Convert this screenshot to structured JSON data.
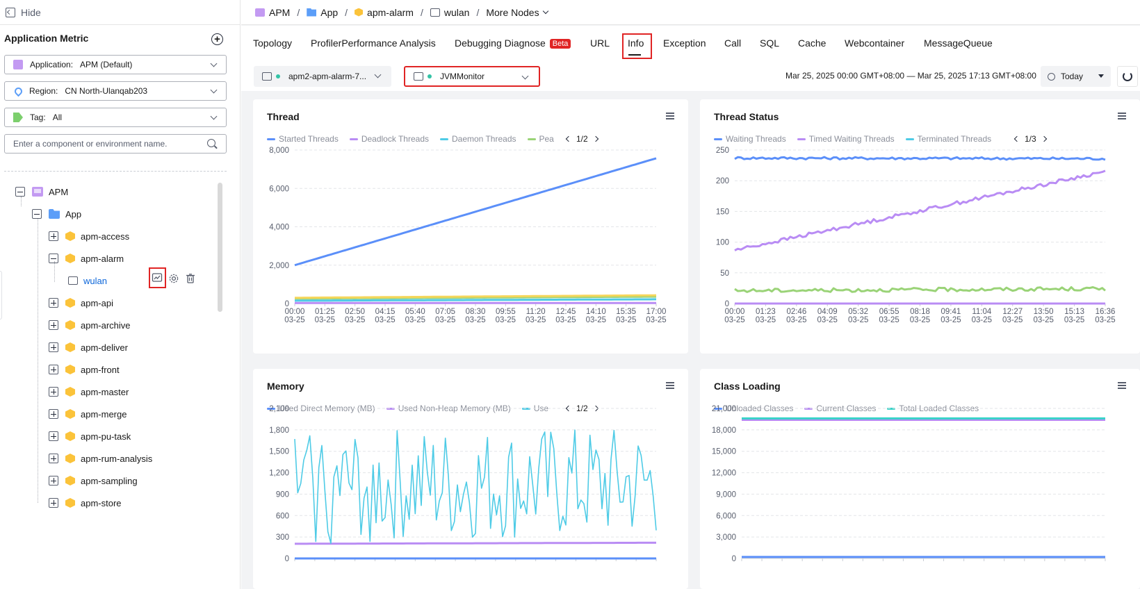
{
  "left": {
    "hide_label": "Hide",
    "panel_title": "Application Metric",
    "application": {
      "label": "Application:",
      "value": "APM (Default)"
    },
    "region": {
      "label": "Region:",
      "value": "CN North-Ulanqab203"
    },
    "tag": {
      "label": "Tag:",
      "value": "All"
    },
    "search_placeholder": "Enter a component or environment name.",
    "tree": {
      "root": "APM",
      "folder": "App",
      "components": [
        "apm-access",
        "apm-alarm",
        "apm-api",
        "apm-archive",
        "apm-deliver",
        "apm-front",
        "apm-master",
        "apm-merge",
        "apm-pu-task",
        "apm-rum-analysis",
        "apm-sampling",
        "apm-store"
      ],
      "expanded_component": "apm-alarm",
      "environment": "wulan"
    }
  },
  "breadcrumb": {
    "items": [
      "APM",
      "App",
      "apm-alarm",
      "wulan"
    ],
    "more": "More Nodes"
  },
  "tabs": [
    {
      "label": "Topology"
    },
    {
      "label": "ProfilerPerformance Analysis"
    },
    {
      "label": "Debugging Diagnose",
      "badge": "Beta"
    },
    {
      "label": "URL"
    },
    {
      "label": "Info",
      "active": true
    },
    {
      "label": "Exception"
    },
    {
      "label": "Call"
    },
    {
      "label": "SQL"
    },
    {
      "label": "Cache"
    },
    {
      "label": "Webcontainer"
    },
    {
      "label": "MessageQueue"
    }
  ],
  "controls": {
    "instance": "apm2-apm-alarm-7...",
    "monitor": "JVMMonitor",
    "time_range": "Mar 25, 2025 00:00 GMT+08:00 — Mar 25, 2025 17:13 GMT+08:00",
    "period": "Today"
  },
  "colors": {
    "blue": "#5b8ff9",
    "purple": "#b98cf4",
    "cyan": "#4ecbe6",
    "green": "#9ad377",
    "yellow": "#f6d65b",
    "teal": "#38d3c8",
    "highlight": "#e02424",
    "env_link": "#0b65d9"
  },
  "chart_data": [
    {
      "title": "Thread",
      "type": "line",
      "legend": [
        "Started Threads",
        "Deadlock Threads",
        "Daemon Threads",
        "Pea"
      ],
      "legend_page": "1/2",
      "x": [
        "00:00",
        "01:25",
        "02:50",
        "04:15",
        "05:40",
        "07:05",
        "08:30",
        "09:55",
        "11:20",
        "12:45",
        "14:10",
        "15:35",
        "17:00"
      ],
      "x_date": "03-25",
      "y_ticks": [
        "0",
        "2,000",
        "4,000",
        "6,000",
        "8,000"
      ],
      "ylim": [
        0,
        8000
      ],
      "series": [
        {
          "name": "Started Threads",
          "color": "blue",
          "start": 2000,
          "end": 7570
        },
        {
          "name": "Deadlock Threads",
          "color": "purple",
          "start": 30,
          "end": 30
        },
        {
          "name": "Daemon Threads",
          "color": "cyan",
          "start": 150,
          "end": 220
        },
        {
          "name": "Pea",
          "color": "green",
          "start": 260,
          "end": 360
        },
        {
          "color": "yellow",
          "start": 300,
          "end": 430
        }
      ]
    },
    {
      "title": "Thread Status",
      "type": "line",
      "legend": [
        "Waiting Threads",
        "Timed Waiting Threads",
        "Terminated Threads"
      ],
      "legend_page": "1/3",
      "x": [
        "00:00",
        "01:23",
        "02:46",
        "04:09",
        "05:32",
        "06:55",
        "08:18",
        "09:41",
        "11:04",
        "12:27",
        "13:50",
        "15:13",
        "16:36"
      ],
      "x_date": "03-25",
      "y_ticks": [
        "0",
        "50",
        "100",
        "150",
        "200",
        "250"
      ],
      "ylim": [
        0,
        250
      ],
      "series": [
        {
          "name": "Waiting Threads",
          "color": "blue",
          "start": 237,
          "end": 236
        },
        {
          "name": "Timed Waiting Threads",
          "color": "purple",
          "start": 87,
          "end": 215
        },
        {
          "name": "Terminated Threads",
          "color": "cyan",
          "start": 0,
          "end": 0
        },
        {
          "color": "green",
          "start": 21,
          "end": 24
        },
        {
          "color": "purple",
          "start": 0,
          "end": 0
        }
      ]
    },
    {
      "title": "Memory",
      "type": "line",
      "legend": [
        "Used Direct Memory (MB)",
        "Used Non-Heap Memory (MB)",
        "Use"
      ],
      "legend_page": "1/2",
      "y_ticks": [
        "0",
        "300",
        "600",
        "900",
        "1,200",
        "1,500",
        "1,800",
        "2,100"
      ],
      "ylim": [
        0,
        2100
      ],
      "series": [
        {
          "name": "Used Direct Memory (MB)",
          "color": "blue",
          "start": 0,
          "end": 0
        },
        {
          "name": "Used Non-Heap Memory (MB)",
          "color": "purple",
          "start": 205,
          "end": 220
        },
        {
          "name": "Use",
          "color": "cyan",
          "range": [
            200,
            1800
          ]
        }
      ]
    },
    {
      "title": "Class Loading",
      "type": "line",
      "legend": [
        "Unloaded Classes",
        "Current Classes",
        "Total Loaded Classes"
      ],
      "y_ticks": [
        "0",
        "3,000",
        "6,000",
        "9,000",
        "12,000",
        "15,000",
        "18,000",
        "21,000"
      ],
      "ylim": [
        0,
        21000
      ],
      "series": [
        {
          "name": "Unloaded Classes",
          "color": "blue",
          "start": 200,
          "end": 200
        },
        {
          "name": "Current Classes",
          "color": "purple",
          "start": 19400,
          "end": 19400
        },
        {
          "name": "Total Loaded Classes",
          "color": "teal",
          "start": 19600,
          "end": 19600
        }
      ]
    }
  ]
}
